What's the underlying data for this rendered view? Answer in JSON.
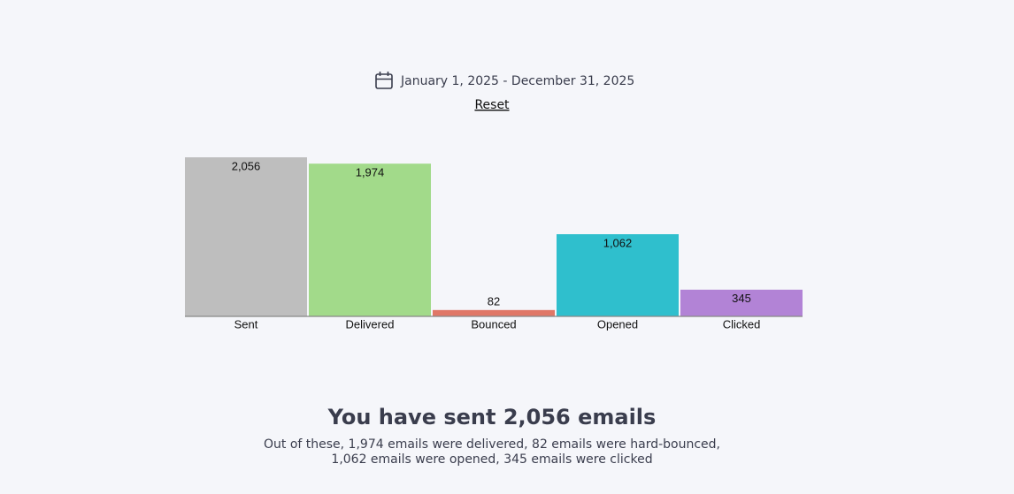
{
  "date_range": "January 1, 2025 - December 31, 2025",
  "reset": "Reset",
  "chart_data": {
    "type": "bar",
    "categories": [
      "Sent",
      "Delivered",
      "Bounced",
      "Opened",
      "Clicked"
    ],
    "values": [
      2056,
      1974,
      82,
      1062,
      345
    ],
    "value_labels": [
      "2,056",
      "1,974",
      "82",
      "1,062",
      "345"
    ],
    "colors": [
      "#bebebe",
      "#a2da8a",
      "#e07767",
      "#2fbfcd",
      "#b283d6"
    ],
    "ylim": [
      0,
      2056
    ]
  },
  "summary": {
    "title": "You have sent 2,056 emails",
    "lines": [
      "Out of these, 1,974 emails were delivered, 82 emails were hard-bounced,",
      "1,062 emails were opened, 345 emails were clicked"
    ]
  }
}
